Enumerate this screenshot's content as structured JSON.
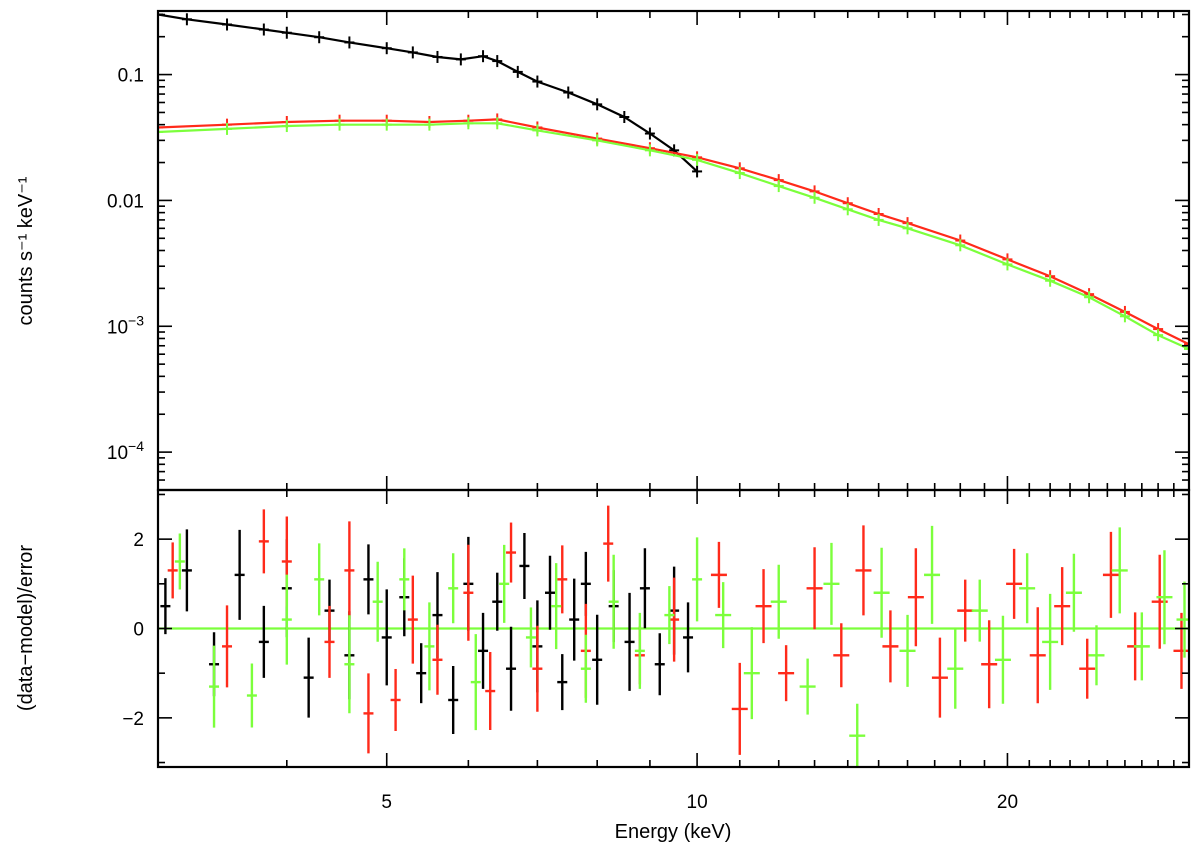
{
  "chart_data": [
    {
      "type": "scatter",
      "panel": "spectrum",
      "xscale": "log",
      "yscale": "log",
      "xlim": [
        3,
        30
      ],
      "ylim": [
        5e-05,
        0.32
      ],
      "xlabel": "",
      "ylabel": "counts s⁻¹ keV⁻¹",
      "yticks": [
        {
          "value": 0.1,
          "base": "0.1",
          "exp": ""
        },
        {
          "value": 0.01,
          "base": "0.01",
          "exp": ""
        },
        {
          "value": 0.001,
          "base": "10",
          "exp": "−3"
        },
        {
          "value": 0.0001,
          "base": "10",
          "exp": "−4"
        }
      ],
      "series": [
        {
          "name": "black",
          "color": "#000000",
          "points": [
            [
              3.0,
              0.3
            ],
            [
              3.2,
              0.275
            ],
            [
              3.5,
              0.25
            ],
            [
              3.8,
              0.228
            ],
            [
              4.0,
              0.215
            ],
            [
              4.3,
              0.198
            ],
            [
              4.6,
              0.18
            ],
            [
              5.0,
              0.162
            ],
            [
              5.3,
              0.15
            ],
            [
              5.6,
              0.138
            ],
            [
              5.9,
              0.132
            ],
            [
              6.2,
              0.14
            ],
            [
              6.4,
              0.128
            ],
            [
              6.7,
              0.105
            ],
            [
              7.0,
              0.088
            ],
            [
              7.5,
              0.072
            ],
            [
              8.0,
              0.058
            ],
            [
              8.5,
              0.046
            ],
            [
              9.0,
              0.034
            ],
            [
              9.5,
              0.025
            ],
            [
              10.0,
              0.017
            ]
          ]
        },
        {
          "name": "red",
          "color": "#ff2a1a",
          "points": [
            [
              3.0,
              0.038
            ],
            [
              3.5,
              0.04
            ],
            [
              4.0,
              0.042
            ],
            [
              4.5,
              0.043
            ],
            [
              5.0,
              0.043
            ],
            [
              5.5,
              0.042
            ],
            [
              6.0,
              0.043
            ],
            [
              6.4,
              0.044
            ],
            [
              7.0,
              0.038
            ],
            [
              8.0,
              0.031
            ],
            [
              9.0,
              0.026
            ],
            [
              10.0,
              0.022
            ],
            [
              11.0,
              0.018
            ],
            [
              12.0,
              0.0145
            ],
            [
              13.0,
              0.0118
            ],
            [
              14.0,
              0.0095
            ],
            [
              15.0,
              0.0078
            ],
            [
              16.0,
              0.0066
            ],
            [
              18.0,
              0.0048
            ],
            [
              20.0,
              0.0034
            ],
            [
              22.0,
              0.0025
            ],
            [
              24.0,
              0.0018
            ],
            [
              26.0,
              0.0013
            ],
            [
              28.0,
              0.00095
            ],
            [
              30.0,
              0.00072
            ]
          ]
        },
        {
          "name": "green",
          "color": "#7cff3c",
          "points": [
            [
              3.0,
              0.035
            ],
            [
              3.5,
              0.037
            ],
            [
              4.0,
              0.039
            ],
            [
              4.5,
              0.04
            ],
            [
              5.0,
              0.04
            ],
            [
              5.5,
              0.04
            ],
            [
              6.0,
              0.041
            ],
            [
              6.4,
              0.041
            ],
            [
              7.0,
              0.036
            ],
            [
              8.0,
              0.03
            ],
            [
              9.0,
              0.025
            ],
            [
              10.0,
              0.021
            ],
            [
              11.0,
              0.0165
            ],
            [
              12.0,
              0.013
            ],
            [
              13.0,
              0.0105
            ],
            [
              14.0,
              0.0085
            ],
            [
              15.0,
              0.007
            ],
            [
              16.0,
              0.006
            ],
            [
              18.0,
              0.0044
            ],
            [
              20.0,
              0.0031
            ],
            [
              22.0,
              0.0023
            ],
            [
              24.0,
              0.0017
            ],
            [
              26.0,
              0.0012
            ],
            [
              28.0,
              0.00085
            ],
            [
              30.0,
              0.00066
            ]
          ]
        }
      ]
    },
    {
      "type": "scatter",
      "panel": "residuals",
      "xscale": "log",
      "xlim": [
        3,
        30
      ],
      "ylim": [
        -3.1,
        3.1
      ],
      "xlabel": "Energy (keV)",
      "ylabel": "(data−model)/error",
      "xticks": [
        {
          "value": 5,
          "label": "5"
        },
        {
          "value": 10,
          "label": "10"
        },
        {
          "value": 20,
          "label": "20"
        }
      ],
      "yticks": [
        {
          "value": 2,
          "label": "2"
        },
        {
          "value": 0,
          "label": "0"
        },
        {
          "value": -2,
          "label": "−2"
        }
      ],
      "zero_line_color": "#7cff3c",
      "series": [
        {
          "name": "black",
          "color": "#000000",
          "points": [
            [
              3.05,
              0.5
            ],
            [
              3.2,
              1.3
            ],
            [
              3.4,
              -0.8
            ],
            [
              3.6,
              1.2
            ],
            [
              3.8,
              -0.3
            ],
            [
              4.0,
              0.9
            ],
            [
              4.2,
              -1.1
            ],
            [
              4.4,
              0.4
            ],
            [
              4.6,
              -0.6
            ],
            [
              4.8,
              1.1
            ],
            [
              5.0,
              -0.2
            ],
            [
              5.2,
              0.7
            ],
            [
              5.4,
              -1.0
            ],
            [
              5.6,
              0.3
            ],
            [
              5.8,
              -1.6
            ],
            [
              6.0,
              1.0
            ],
            [
              6.2,
              -0.5
            ],
            [
              6.4,
              0.6
            ],
            [
              6.6,
              -0.9
            ],
            [
              6.8,
              1.4
            ],
            [
              7.0,
              -0.4
            ],
            [
              7.2,
              0.8
            ],
            [
              7.4,
              -1.2
            ],
            [
              7.6,
              0.2
            ],
            [
              7.8,
              1.0
            ],
            [
              8.0,
              -0.7
            ],
            [
              8.3,
              0.5
            ],
            [
              8.6,
              -0.3
            ],
            [
              8.9,
              0.9
            ],
            [
              9.2,
              -0.8
            ],
            [
              9.5,
              0.4
            ],
            [
              9.8,
              -0.2
            ]
          ]
        },
        {
          "name": "red",
          "color": "#ff2a1a",
          "points": [
            [
              3.1,
              1.3
            ],
            [
              3.5,
              -0.4
            ],
            [
              3.8,
              1.95
            ],
            [
              4.0,
              1.5
            ],
            [
              4.4,
              -0.3
            ],
            [
              4.6,
              1.3
            ],
            [
              4.8,
              -1.9
            ],
            [
              5.1,
              -1.6
            ],
            [
              5.3,
              0.2
            ],
            [
              5.6,
              -0.7
            ],
            [
              6.0,
              0.8
            ],
            [
              6.3,
              -1.4
            ],
            [
              6.6,
              1.7
            ],
            [
              7.0,
              -0.9
            ],
            [
              7.4,
              1.1
            ],
            [
              7.8,
              -0.5
            ],
            [
              8.2,
              1.9
            ],
            [
              8.8,
              -0.6
            ],
            [
              9.5,
              0.2
            ],
            [
              10.5,
              1.2
            ],
            [
              11.0,
              -1.8
            ],
            [
              11.6,
              0.5
            ],
            [
              12.2,
              -1.0
            ],
            [
              13.0,
              0.9
            ],
            [
              13.8,
              -0.6
            ],
            [
              14.5,
              1.3
            ],
            [
              15.4,
              -0.4
            ],
            [
              16.3,
              0.7
            ],
            [
              17.2,
              -1.1
            ],
            [
              18.2,
              0.4
            ],
            [
              19.2,
              -0.8
            ],
            [
              20.3,
              1.0
            ],
            [
              21.4,
              -0.6
            ],
            [
              22.6,
              0.5
            ],
            [
              23.9,
              -0.9
            ],
            [
              25.2,
              1.2
            ],
            [
              26.6,
              -0.4
            ],
            [
              28.1,
              0.6
            ],
            [
              29.5,
              -0.5
            ]
          ]
        },
        {
          "name": "green",
          "color": "#7cff3c",
          "points": [
            [
              3.15,
              1.5
            ],
            [
              3.4,
              -1.3
            ],
            [
              3.7,
              -1.5
            ],
            [
              4.0,
              0.2
            ],
            [
              4.3,
              1.1
            ],
            [
              4.6,
              -0.8
            ],
            [
              4.9,
              0.6
            ],
            [
              5.2,
              1.1
            ],
            [
              5.5,
              -0.4
            ],
            [
              5.8,
              0.9
            ],
            [
              6.1,
              -1.2
            ],
            [
              6.5,
              1.0
            ],
            [
              6.9,
              -0.2
            ],
            [
              7.3,
              0.5
            ],
            [
              7.8,
              -0.9
            ],
            [
              8.3,
              0.6
            ],
            [
              8.8,
              -0.5
            ],
            [
              9.4,
              0.3
            ],
            [
              10.0,
              1.1
            ],
            [
              10.6,
              0.3
            ],
            [
              11.3,
              -1.0
            ],
            [
              12.0,
              0.6
            ],
            [
              12.8,
              -1.3
            ],
            [
              13.5,
              1.0
            ],
            [
              14.3,
              -2.4
            ],
            [
              15.1,
              0.8
            ],
            [
              16.0,
              -0.5
            ],
            [
              16.9,
              1.2
            ],
            [
              17.8,
              -0.9
            ],
            [
              18.8,
              0.4
            ],
            [
              19.8,
              -0.7
            ],
            [
              20.9,
              0.9
            ],
            [
              22.0,
              -0.3
            ],
            [
              23.2,
              0.8
            ],
            [
              24.4,
              -0.6
            ],
            [
              25.7,
              1.3
            ],
            [
              27.0,
              -0.4
            ],
            [
              28.4,
              0.7
            ],
            [
              29.7,
              0.2
            ]
          ]
        }
      ]
    }
  ]
}
